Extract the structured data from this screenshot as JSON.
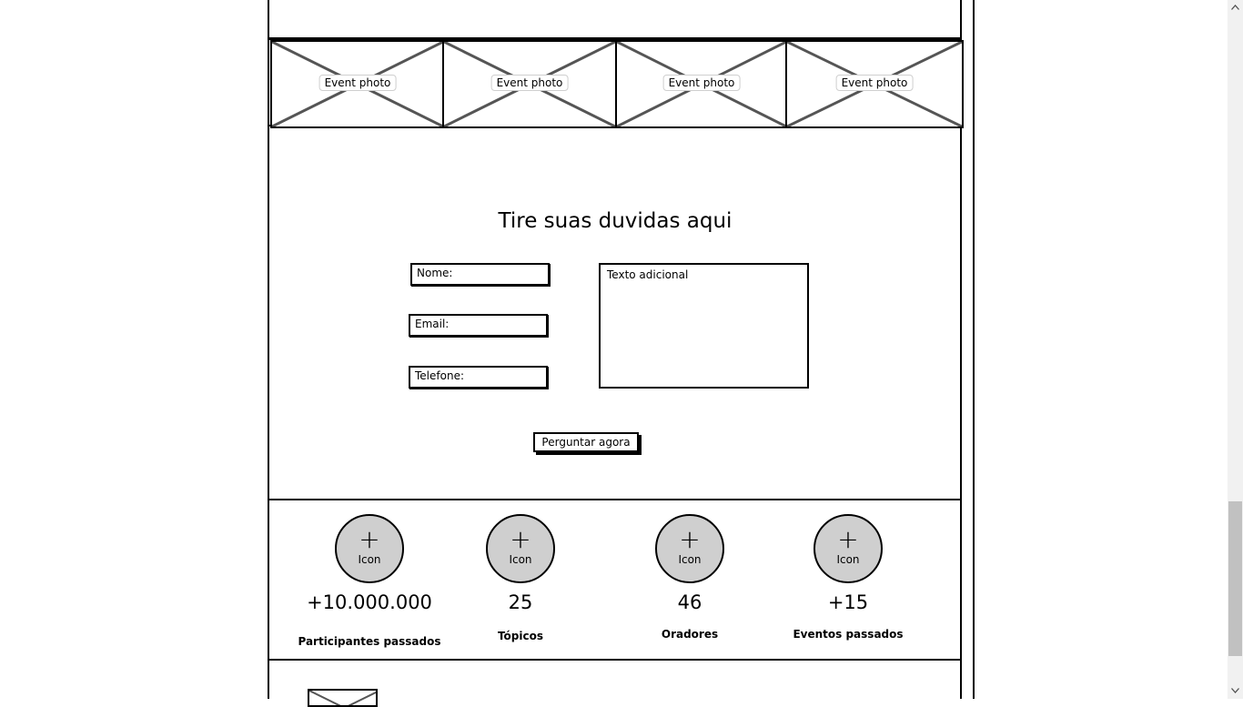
{
  "photos": [
    {
      "label": "Event photo"
    },
    {
      "label": "Event photo"
    },
    {
      "label": "Event photo"
    },
    {
      "label": "Event photo"
    }
  ],
  "form": {
    "title": "Tire suas duvidas aqui",
    "name_placeholder": "Nome:",
    "email_placeholder": "Email:",
    "phone_placeholder": "Telefone:",
    "message_placeholder": "Texto adicional",
    "submit_label": "Perguntar agora"
  },
  "stats": [
    {
      "icon_text": "Icon",
      "value": "+10.000.000",
      "caption": "Participantes passados"
    },
    {
      "icon_text": "Icon",
      "value": "25",
      "caption": "Tópicos"
    },
    {
      "icon_text": "Icon",
      "value": "46",
      "caption": "Oradores"
    },
    {
      "icon_text": "Icon",
      "value": "+15",
      "caption": "Eventos passados"
    }
  ],
  "icons": {
    "stat_icon": "plus-icon",
    "photo_placeholder": "image-placeholder-icon",
    "scroll_up": "chevron-up-icon",
    "scroll_down": "chevron-down-icon"
  }
}
